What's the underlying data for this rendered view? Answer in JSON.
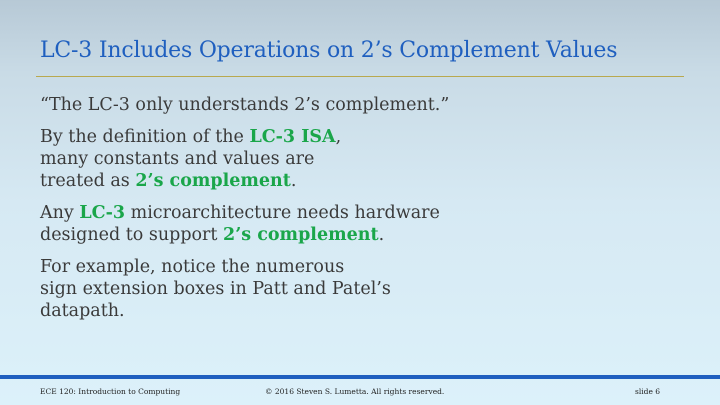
{
  "slide": {
    "title": "LC-3 Includes Operations on 2’s Complement Values",
    "paragraphs": [
      [
        "“The LC-3 only understands 2’s complement.”"
      ],
      [
        "By the definition of the ",
        "LC-3 ISA",
        ",",
        "many constants and values are",
        "treated as ",
        "2’s complement",
        "."
      ],
      [
        "Any ",
        "LC-3",
        " microarchitecture needs hardware",
        "designed to support ",
        "2’s complement",
        "."
      ],
      [
        "For example, notice the numerous",
        "sign extension boxes in Patt and Patel’s",
        "datapath."
      ]
    ]
  },
  "footer": {
    "course": "ECE 120: Introduction to Computing",
    "copyright": "© 2016 Steven S. Lumetta.  All rights reserved.",
    "slide_number": "slide 6"
  },
  "colors": {
    "title": "#1f5fbf",
    "highlight": "#1aa64a",
    "rule": "#b9a94f",
    "footer_bar": "#1f5fbf"
  }
}
